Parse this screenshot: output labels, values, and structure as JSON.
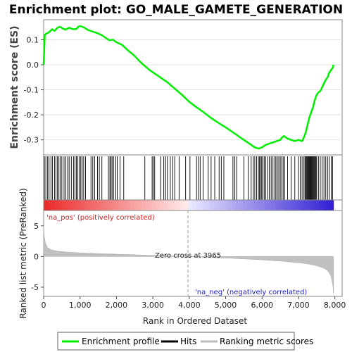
{
  "chart_data": {
    "type": "line",
    "title": "Enrichment plot: GO_MALE_GAMETE_GENERATION",
    "xlabel": "Rank in Ordered Dataset",
    "ylabel_top": "Enrichment score (ES)",
    "ylabel_bottom": "Ranked list metric (PreRanked)",
    "xlim": [
      0,
      8200
    ],
    "x_ticks": [
      0,
      1000,
      2000,
      3000,
      4000,
      5000,
      6000,
      7000,
      8000
    ],
    "x_tick_labels": [
      "0",
      "1,000",
      "2,000",
      "3,000",
      "4,000",
      "5,000",
      "6,000",
      "7,000",
      "8,000"
    ],
    "es_ylim": [
      -0.36,
      0.18
    ],
    "es_ticks": [
      0.1,
      0.0,
      -0.1,
      -0.2,
      -0.3
    ],
    "es_tick_labels": [
      "0.1",
      "0.0",
      "-0.1",
      "-0.2",
      "-0.3"
    ],
    "metric_ylim": [
      -6.5,
      7.5
    ],
    "metric_ticks": [
      5,
      0,
      -5
    ],
    "metric_tick_labels": [
      "5",
      "0",
      "-5"
    ],
    "series": [
      {
        "name": "Enrichment profile",
        "color": "#00ee00",
        "x": [
          0,
          30,
          80,
          150,
          230,
          300,
          380,
          450,
          520,
          600,
          700,
          800,
          900,
          950,
          1000,
          1060,
          1120,
          1200,
          1300,
          1400,
          1500,
          1600,
          1700,
          1800,
          1900,
          2000,
          2150,
          2300,
          2500,
          2700,
          2900,
          3000,
          3200,
          3400,
          3600,
          3800,
          4000,
          4200,
          4400,
          4600,
          4800,
          5000,
          5200,
          5400,
          5600,
          5700,
          5800,
          5900,
          6000,
          6100,
          6200,
          6300,
          6400,
          6500,
          6550,
          6600,
          6700,
          6800,
          6900,
          7000,
          7100,
          7150,
          7200,
          7250,
          7300,
          7350,
          7400,
          7450,
          7500,
          7550,
          7600,
          7650,
          7700,
          7750,
          7800,
          7850,
          7900,
          7950,
          7960
        ],
        "y": [
          0.0,
          0.12,
          0.125,
          0.13,
          0.142,
          0.135,
          0.148,
          0.152,
          0.145,
          0.14,
          0.148,
          0.142,
          0.143,
          0.152,
          0.155,
          0.152,
          0.148,
          0.14,
          0.135,
          0.13,
          0.125,
          0.118,
          0.108,
          0.098,
          0.1,
          0.09,
          0.08,
          0.06,
          0.035,
          0.005,
          -0.02,
          -0.03,
          -0.05,
          -0.07,
          -0.095,
          -0.12,
          -0.148,
          -0.17,
          -0.19,
          -0.213,
          -0.232,
          -0.25,
          -0.27,
          -0.29,
          -0.31,
          -0.32,
          -0.33,
          -0.335,
          -0.33,
          -0.32,
          -0.315,
          -0.31,
          -0.305,
          -0.3,
          -0.29,
          -0.285,
          -0.295,
          -0.3,
          -0.305,
          -0.3,
          -0.305,
          -0.29,
          -0.27,
          -0.24,
          -0.21,
          -0.19,
          -0.17,
          -0.14,
          -0.12,
          -0.11,
          -0.105,
          -0.09,
          -0.075,
          -0.06,
          -0.05,
          -0.03,
          -0.02,
          -0.01,
          0.0
        ]
      }
    ],
    "hits": [
      20,
      60,
      110,
      150,
      200,
      240,
      300,
      340,
      380,
      420,
      460,
      500,
      560,
      610,
      660,
      700,
      760,
      820,
      860,
      900,
      940,
      980,
      1020,
      1060,
      1100,
      1150,
      1300,
      1350,
      1400,
      1480,
      1530,
      1600,
      1780,
      1820,
      1850,
      1880,
      1920,
      1980,
      2020,
      2100,
      2200,
      2780,
      2980,
      3010,
      3050,
      3220,
      3300,
      3350,
      3400,
      3480,
      3550,
      3600,
      3720,
      3900,
      4020,
      4200,
      4250,
      4300,
      4380,
      4520,
      4600,
      4700,
      4820,
      4880,
      4950,
      5200,
      5250,
      5300,
      5500,
      5620,
      5700,
      5760,
      5800,
      5850,
      5900,
      5930,
      5960,
      5990,
      6020,
      6060,
      6100,
      6150,
      6200,
      6250,
      6300,
      6350,
      6380,
      6420,
      6460,
      6500,
      6540,
      6580,
      6620,
      6700,
      6800,
      6900,
      7000,
      7050,
      7100,
      7150,
      7180,
      7200,
      7220,
      7240,
      7260,
      7280,
      7300,
      7320,
      7340,
      7360,
      7380,
      7400,
      7420,
      7440,
      7460,
      7480,
      7500,
      7550,
      7600,
      7650,
      7700,
      7750,
      7800,
      7850,
      7900,
      7940
    ],
    "metric_profile": {
      "x": [
        0,
        20,
        50,
        100,
        200,
        400,
        700,
        1000,
        1500,
        2000,
        2500,
        3000,
        3500,
        3965,
        4500,
        5000,
        5500,
        6000,
        6500,
        7000,
        7300,
        7500,
        7700,
        7800,
        7880,
        7920,
        7950,
        7960
      ],
      "y": [
        5.0,
        3.2,
        2.2,
        1.5,
        1.1,
        0.85,
        0.7,
        0.6,
        0.48,
        0.38,
        0.28,
        0.18,
        0.08,
        0.0,
        -0.12,
        -0.25,
        -0.4,
        -0.55,
        -0.75,
        -1.0,
        -1.25,
        -1.5,
        -1.9,
        -2.3,
        -3.0,
        -3.8,
        -5.0,
        -6.0
      ]
    },
    "zero_cross": 3965,
    "zero_cross_label": "Zero cross at 3965",
    "pos_label": "'na_pos' (positively correlated)",
    "neg_label": "'na_neg' (negatively correlated)",
    "legend": [
      {
        "label": "Enrichment profile",
        "color": "#00ee00"
      },
      {
        "label": "Hits",
        "color": "#000000"
      },
      {
        "label": "Ranking metric scores",
        "color": "#bbbbbb"
      }
    ]
  }
}
